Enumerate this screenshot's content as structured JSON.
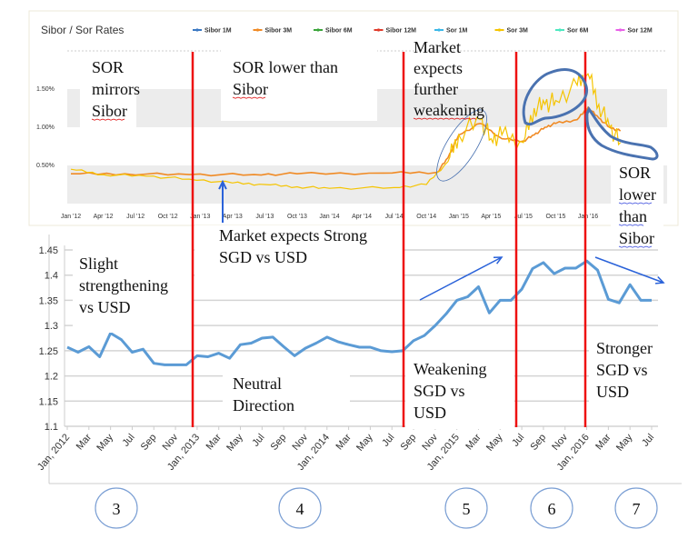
{
  "chart_data": [
    {
      "type": "line",
      "title": "Sibor / Sor Rates",
      "legend_position": "top",
      "ylim": [
        0,
        2.0
      ],
      "y_ticks": [
        "0.50%",
        "1.00%",
        "1.50%"
      ],
      "x_ticks": [
        "Jan '12",
        "Apr '12",
        "Jul '12",
        "Oct '12",
        "Jan '13",
        "Apr '13",
        "Jul '13",
        "Oct '13",
        "Jan '14",
        "Apr '14",
        "Jul '14",
        "Oct '14",
        "Jan '15",
        "Apr '15",
        "Jul '15",
        "Oct '15",
        "Jan '16"
      ],
      "legend": [
        {
          "name": "Sibor 1M",
          "color": "#3a78c3"
        },
        {
          "name": "Sibor 3M",
          "color": "#f08a24"
        },
        {
          "name": "Sibor 6M",
          "color": "#3aa53a"
        },
        {
          "name": "Sibor 12M",
          "color": "#e03a2a"
        },
        {
          "name": "Sor 1M",
          "color": "#3ab8e8"
        },
        {
          "name": "Sor 3M",
          "color": "#f5c400"
        },
        {
          "name": "Sor 6M",
          "color": "#4de8c0"
        },
        {
          "name": "Sor 12M",
          "color": "#e860e8"
        }
      ],
      "series": [
        {
          "name": "Sibor 3M",
          "color": "#f08a24",
          "x": [
            "2012-01",
            "2012-06",
            "2012-12",
            "2013-06",
            "2013-10",
            "2014-06",
            "2014-11",
            "2014-12",
            "2015-01",
            "2015-03",
            "2015-05",
            "2015-07",
            "2015-08",
            "2015-09",
            "2015-10",
            "2015-12",
            "2016-01",
            "2016-02",
            "2016-03",
            "2016-04"
          ],
          "values": [
            0.39,
            0.39,
            0.38,
            0.38,
            0.39,
            0.4,
            0.41,
            0.6,
            0.9,
            1.05,
            0.85,
            0.82,
            0.9,
            1.0,
            1.05,
            1.1,
            1.26,
            1.12,
            1.0,
            0.95
          ]
        },
        {
          "name": "Sor 3M",
          "color": "#f5c400",
          "x": [
            "2012-01",
            "2012-04",
            "2012-08",
            "2012-12",
            "2013-04",
            "2013-07",
            "2013-10",
            "2014-01",
            "2014-07",
            "2014-10",
            "2014-12",
            "2015-01",
            "2015-03",
            "2015-04",
            "2015-05",
            "2015-07",
            "2015-08",
            "2015-09",
            "2015-10",
            "2015-12",
            "2016-01",
            "2016-02",
            "2016-03",
            "2016-04"
          ],
          "values": [
            0.45,
            0.38,
            0.36,
            0.32,
            0.27,
            0.25,
            0.22,
            0.2,
            0.21,
            0.25,
            0.55,
            0.9,
            1.1,
            0.85,
            0.9,
            0.8,
            1.25,
            1.3,
            1.35,
            1.55,
            1.7,
            1.3,
            1.0,
            0.8
          ]
        }
      ]
    },
    {
      "type": "line",
      "ylim": [
        1.1,
        1.45
      ],
      "y_ticks": [
        "1.1",
        "1.15",
        "1.2",
        "1.25",
        "1.3",
        "1.35",
        "1.4",
        "1.45"
      ],
      "grid": true,
      "x_ticks": [
        "Jan, 2012",
        "Mar",
        "May",
        "Jul",
        "Sep",
        "Nov",
        "Jan, 2013",
        "Mar",
        "May",
        "Jul",
        "Sep",
        "Nov",
        "Jan, 2014",
        "Mar",
        "May",
        "Jul",
        "Sep",
        "Nov",
        "Jan, 2015",
        "Mar",
        "May",
        "Jul",
        "Sep",
        "Nov",
        "Jan, 2016",
        "Mar",
        "May",
        "Jul"
      ],
      "series": [
        {
          "color": "#5b9bd5",
          "x_start": "2012-01",
          "frequency": "monthly",
          "values": [
            1.257,
            1.247,
            1.258,
            1.238,
            1.285,
            1.272,
            1.247,
            1.253,
            1.225,
            1.222,
            1.222,
            1.222,
            1.24,
            1.238,
            1.245,
            1.235,
            1.262,
            1.265,
            1.275,
            1.277,
            1.258,
            1.24,
            1.255,
            1.265,
            1.277,
            1.268,
            1.262,
            1.257,
            1.257,
            1.25,
            1.248,
            1.25,
            1.27,
            1.28,
            1.3,
            1.323,
            1.35,
            1.357,
            1.377,
            1.325,
            1.35,
            1.35,
            1.372,
            1.413,
            1.425,
            1.403,
            1.414,
            1.414,
            1.428,
            1.41,
            1.352,
            1.345,
            1.381,
            1.35,
            1.35
          ]
        }
      ]
    }
  ],
  "annotations": {
    "a1": [
      "SOR",
      "mirrors",
      "Sibor"
    ],
    "a2": [
      "SOR lower than",
      "Sibor"
    ],
    "a3": [
      "Market",
      "expects",
      "further",
      "weakening"
    ],
    "a4": [
      "SOR",
      "lower",
      "than",
      "Sibor"
    ],
    "a5": [
      "Market expects Strong",
      "SGD vs USD"
    ],
    "a6": [
      "Slight",
      "strengthening",
      "vs USD"
    ],
    "a7": [
      "Neutral",
      "Direction"
    ],
    "a8": [
      "Weakening",
      "SGD vs",
      "USD"
    ],
    "a9": [
      "Stronger",
      "SGD vs",
      "USD"
    ]
  },
  "phases": [
    "3",
    "4",
    "5",
    "6",
    "7"
  ],
  "colors": {
    "divider": "#ee1111",
    "arrow": "#2a62d9",
    "circle": "#4a72b0"
  }
}
